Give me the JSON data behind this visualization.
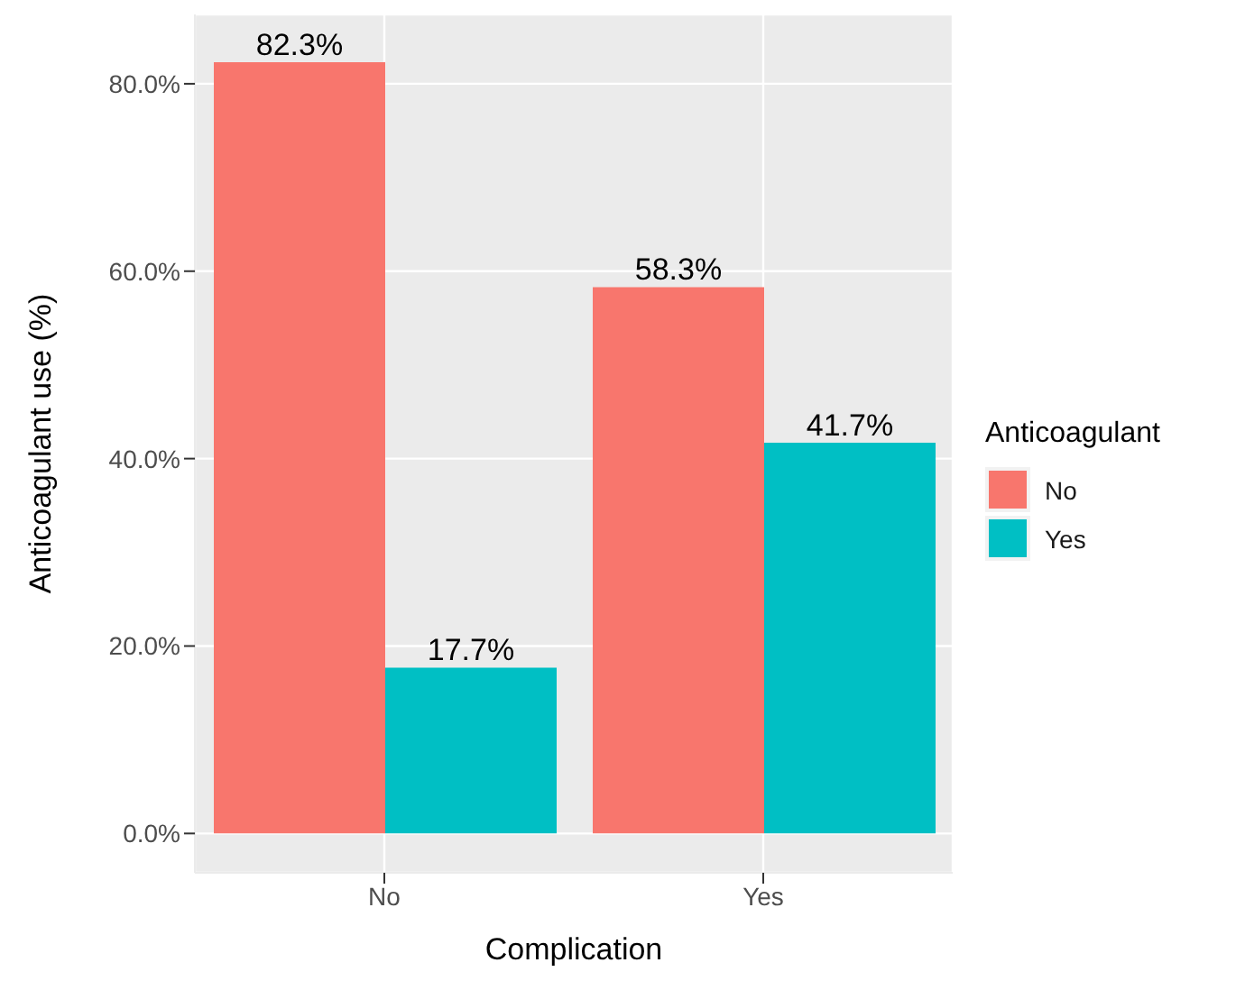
{
  "chart_data": {
    "type": "bar",
    "xlabel": "Complication",
    "ylabel": "Anticoagulant use (%)",
    "legend_title": "Anticoagulant",
    "categories": [
      "No",
      "Yes"
    ],
    "series": [
      {
        "name": "No",
        "color": "#f8766d",
        "values": [
          82.3,
          58.3
        ],
        "value_labels": [
          "82.3%",
          "58.3%"
        ]
      },
      {
        "name": "Yes",
        "color": "#00bfc4",
        "values": [
          17.7,
          41.7
        ],
        "value_labels": [
          "17.7%",
          "41.7%"
        ]
      }
    ],
    "ylim": [
      -4.2,
      87.4
    ],
    "yticks": [
      {
        "value": 0,
        "label": "0.0%"
      },
      {
        "value": 20,
        "label": "20.0%"
      },
      {
        "value": 40,
        "label": "40.0%"
      },
      {
        "value": 60,
        "label": "60.0%"
      },
      {
        "value": 80,
        "label": "80.0%"
      }
    ],
    "grid": true,
    "legend": "right"
  }
}
